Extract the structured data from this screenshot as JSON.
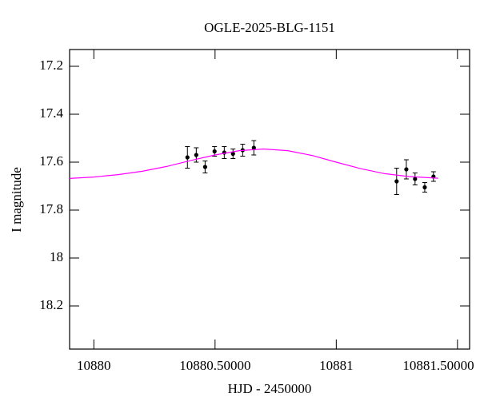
{
  "chart_data": {
    "type": "scatter",
    "title": "OGLE-2025-BLG-1151",
    "x_label": "HJD - 2450000",
    "y_label": "I magnitude",
    "invert_y": true,
    "xlim": [
      10879.9,
      10881.55
    ],
    "ylim": [
      17.13,
      18.38
    ],
    "xticks": [
      10880,
      {
        "value": 10880.5,
        "label": "10880.50000"
      },
      10881,
      {
        "value": 10881.5,
        "label": "10881.50000"
      }
    ],
    "yticks": [
      17.2,
      17.4,
      17.6,
      17.8,
      18,
      18.2
    ],
    "series": [
      {
        "color": "#000000",
        "x": [
          10880.386,
          10880.4225,
          10880.459,
          10880.498,
          10880.538,
          10880.574,
          10880.614,
          10880.66,
          10881.249,
          10881.289,
          10881.325,
          10881.365,
          10881.401
        ],
        "values": [
          17.58,
          17.57,
          17.62,
          17.555,
          17.56,
          17.565,
          17.55,
          17.54,
          17.68,
          17.63,
          17.67,
          17.705,
          17.66
        ],
        "errors": [
          0.045,
          0.03,
          0.025,
          0.02,
          0.025,
          0.02,
          0.025,
          0.03,
          0.055,
          0.04,
          0.025,
          0.02,
          0.02
        ]
      },
      {
        "type": "line",
        "color": "#ff00ff",
        "x": [
          10879.9,
          10880.0,
          10880.1,
          10880.2,
          10880.3,
          10880.4,
          10880.5,
          10880.6,
          10880.7,
          10880.8,
          10880.9,
          10881.0,
          10881.1,
          10881.2,
          10881.3,
          10881.42
        ],
        "values": [
          17.668,
          17.662,
          17.652,
          17.638,
          17.618,
          17.593,
          17.57,
          17.552,
          17.545,
          17.552,
          17.572,
          17.6,
          17.627,
          17.648,
          17.66,
          17.667
        ]
      }
    ]
  }
}
